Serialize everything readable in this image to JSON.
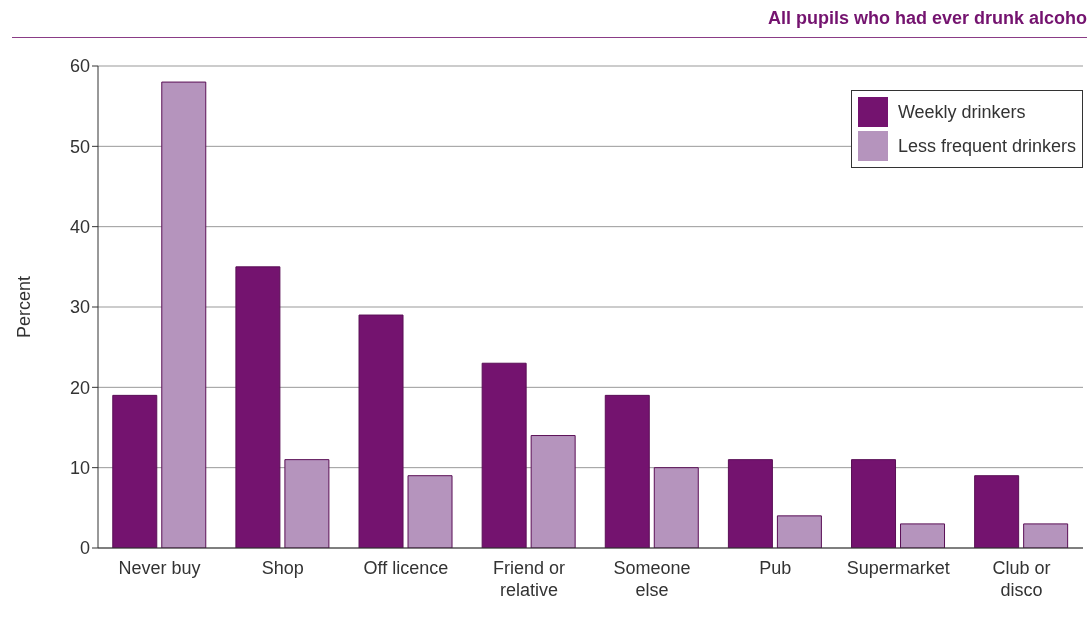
{
  "chart_data": {
    "type": "bar",
    "title": "All pupils who had ever drunk alcoho",
    "ylabel": "Percent",
    "categories": [
      "Never buy",
      "Shop",
      "Off licence",
      "Friend or relative",
      "Someone else",
      "Pub",
      "Supermarket",
      "Club or disco"
    ],
    "series": [
      {
        "name": "Weekly drinkers",
        "color": "#74136f",
        "values": [
          19,
          35,
          29,
          23,
          19,
          11,
          11,
          9
        ]
      },
      {
        "name": "Less frequent drinkers",
        "color": "#b594bd",
        "values": [
          58,
          11,
          9,
          14,
          10,
          4,
          3,
          3
        ]
      }
    ],
    "ylim": [
      0,
      60
    ],
    "yticks": [
      0,
      10,
      20,
      30,
      40,
      50,
      60
    ],
    "grid": "y",
    "legend": "top right"
  }
}
